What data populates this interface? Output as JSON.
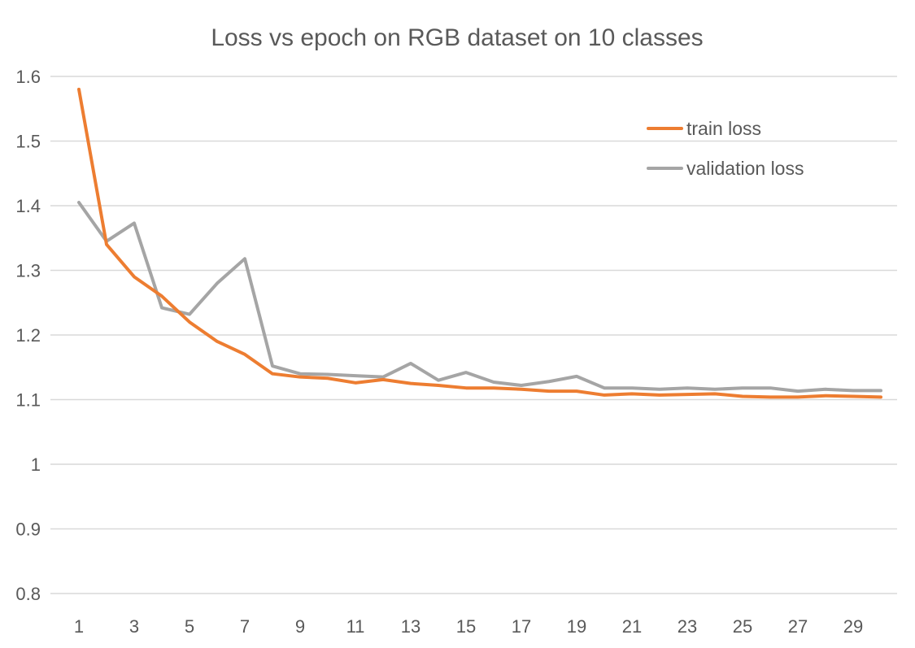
{
  "chart_data": {
    "type": "line",
    "title": "Loss vs epoch on RGB dataset on 10 classes",
    "xlabel": "",
    "ylabel": "",
    "x": [
      1,
      2,
      3,
      4,
      5,
      6,
      7,
      8,
      9,
      10,
      11,
      12,
      13,
      14,
      15,
      16,
      17,
      18,
      19,
      20,
      21,
      22,
      23,
      24,
      25,
      26,
      27,
      28,
      29,
      30
    ],
    "x_tick_labels": [
      "1",
      "3",
      "5",
      "7",
      "9",
      "11",
      "13",
      "15",
      "17",
      "19",
      "21",
      "23",
      "25",
      "27",
      "29"
    ],
    "y_tick_labels": [
      "0.8",
      "0.9",
      "1",
      "1.1",
      "1.2",
      "1.3",
      "1.4",
      "1.5",
      "1.6"
    ],
    "ylim": [
      0.8,
      1.6
    ],
    "grid": true,
    "legend_position": "top-right",
    "series": [
      {
        "name": "train loss",
        "color": "#ed7d31",
        "values": [
          1.58,
          1.34,
          1.29,
          1.26,
          1.22,
          1.19,
          1.17,
          1.14,
          1.135,
          1.133,
          1.126,
          1.131,
          1.125,
          1.122,
          1.118,
          1.118,
          1.116,
          1.113,
          1.113,
          1.107,
          1.109,
          1.107,
          1.108,
          1.109,
          1.105,
          1.104,
          1.104,
          1.106,
          1.105,
          1.104
        ]
      },
      {
        "name": "validation loss",
        "color": "#a5a5a5",
        "values": [
          1.405,
          1.345,
          1.373,
          1.242,
          1.232,
          1.28,
          1.318,
          1.152,
          1.14,
          1.139,
          1.137,
          1.135,
          1.156,
          1.13,
          1.142,
          1.127,
          1.122,
          1.128,
          1.136,
          1.118,
          1.118,
          1.116,
          1.118,
          1.116,
          1.118,
          1.118,
          1.113,
          1.116,
          1.114,
          1.114
        ]
      }
    ]
  }
}
